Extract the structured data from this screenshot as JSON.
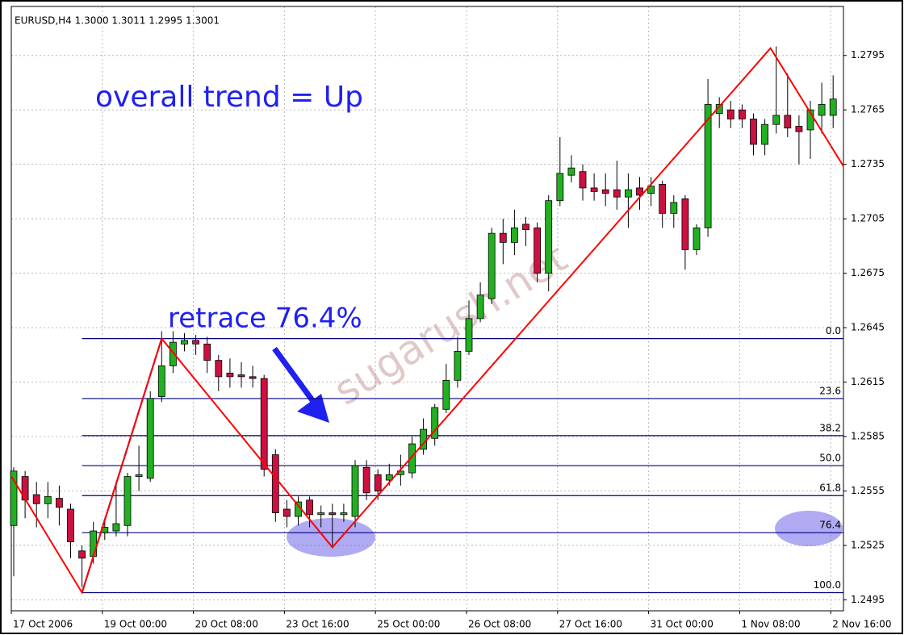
{
  "chart_data": {
    "type": "candlestick",
    "title": "EURUSD,H4  1.3000 1.3011 1.2995 1.3001",
    "annotations": [
      "overall trend = Up",
      "retrace 76.4%"
    ],
    "watermark": "sugarush.net",
    "categories": [
      "17 Oct 2006",
      null,
      null,
      null,
      null,
      null,
      null,
      null,
      "19 Oct 00:00",
      null,
      null,
      null,
      null,
      null,
      null,
      null,
      "20 Oct 08:00",
      null,
      null,
      null,
      null,
      null,
      null,
      null,
      "23 Oct 16:00",
      null,
      null,
      null,
      null,
      null,
      null,
      null,
      "25 Oct 00:00",
      null,
      null,
      null,
      null,
      null,
      null,
      null,
      "26 Oct 08:00",
      null,
      null,
      null,
      null,
      null,
      null,
      null,
      "27 Oct 16:00",
      null,
      null,
      null,
      null,
      null,
      null,
      null,
      "31 Oct 00:00",
      null,
      null,
      null,
      null,
      null,
      null,
      null,
      "1 Nov 08:00",
      null,
      null,
      null,
      null,
      null,
      null,
      null,
      "2 Nov 16:00"
    ],
    "open": [
      1.2536,
      1.2563,
      1.2553,
      1.2548,
      1.2551,
      1.2545,
      1.2522,
      1.2519,
      1.2532,
      1.2533,
      1.2536,
      1.2563,
      1.2562,
      1.2607,
      1.2624,
      1.2636,
      1.2638,
      1.2636,
      1.2627,
      1.262,
      1.2619,
      1.2618,
      1.2617,
      1.2575,
      1.2545,
      1.2541,
      1.255,
      1.2542,
      1.2543,
      1.2542,
      1.2541,
      1.2568,
      1.2564,
      1.2561,
      1.2564,
      1.2565,
      1.2578,
      1.2584,
      1.26,
      1.2616,
      1.2632,
      1.265,
      1.2661,
      1.2697,
      1.2692,
      1.2702,
      1.27,
      1.2675,
      1.2715,
      1.2729,
      1.2731,
      1.2722,
      1.2721,
      1.2721,
      1.2717,
      1.2722,
      1.2719,
      1.2724,
      1.2708,
      1.2716,
      1.2688,
      1.27,
      1.2763,
      1.2765,
      1.2765,
      1.276,
      1.2746,
      1.2757,
      1.2762,
      1.2756,
      1.2754,
      1.2762,
      1.2762
    ],
    "high": [
      1.2568,
      1.2566,
      1.256,
      1.256,
      1.2558,
      1.2548,
      1.2525,
      1.2538,
      1.254,
      1.256,
      1.2565,
      1.258,
      1.261,
      1.2643,
      1.2643,
      1.2642,
      1.2641,
      1.264,
      1.263,
      1.2628,
      1.2626,
      1.2624,
      1.2619,
      1.2578,
      1.255,
      1.2552,
      1.2552,
      1.2547,
      1.2548,
      1.2548,
      1.2572,
      1.2572,
      1.2567,
      1.257,
      1.2575,
      1.2585,
      1.2595,
      1.2603,
      1.2625,
      1.264,
      1.266,
      1.267,
      1.27,
      1.2705,
      1.271,
      1.2706,
      1.2703,
      1.2718,
      1.275,
      1.274,
      1.2735,
      1.273,
      1.273,
      1.2737,
      1.273,
      1.2728,
      1.2728,
      1.2726,
      1.2718,
      1.2718,
      1.2702,
      1.2782,
      1.2772,
      1.277,
      1.2768,
      1.2763,
      1.276,
      1.28,
      1.2785,
      1.2762,
      1.277,
      1.278,
      1.2784
    ],
    "low": [
      1.2508,
      1.254,
      1.2535,
      1.254,
      1.2536,
      1.2518,
      1.2502,
      1.2515,
      1.2528,
      1.253,
      1.253,
      1.2555,
      1.256,
      1.2604,
      1.262,
      1.2632,
      1.263,
      1.262,
      1.261,
      1.2612,
      1.2612,
      1.2612,
      1.2563,
      1.2538,
      1.2535,
      1.2536,
      1.2535,
      1.2535,
      1.2524,
      1.2538,
      1.2535,
      1.255,
      1.255,
      1.2558,
      1.2558,
      1.2562,
      1.2575,
      1.258,
      1.2598,
      1.2612,
      1.263,
      1.2648,
      1.2658,
      1.268,
      1.2685,
      1.269,
      1.267,
      1.2665,
      1.2712,
      1.2725,
      1.2715,
      1.2715,
      1.2712,
      1.271,
      1.27,
      1.271,
      1.2712,
      1.27,
      1.27,
      1.2677,
      1.2685,
      1.2695,
      1.2755,
      1.2755,
      1.2755,
      1.274,
      1.274,
      1.2752,
      1.275,
      1.2735,
      1.2738,
      1.2752,
      1.2755
    ],
    "close": [
      1.2566,
      1.255,
      1.2548,
      1.2552,
      1.2546,
      1.2527,
      1.2518,
      1.2533,
      1.2535,
      1.2537,
      1.2563,
      1.2564,
      1.2606,
      1.2624,
      1.2637,
      1.2638,
      1.2636,
      1.2627,
      1.2618,
      1.2618,
      1.2618,
      1.2617,
      1.2567,
      1.2543,
      1.2541,
      1.2549,
      1.2542,
      1.2543,
      1.2542,
      1.2543,
      1.2569,
      1.2554,
      1.2555,
      1.2564,
      1.2566,
      1.2581,
      1.2589,
      1.2601,
      1.2616,
      1.2632,
      1.265,
      1.2663,
      1.2697,
      1.2692,
      1.27,
      1.2699,
      1.2675,
      1.2715,
      1.273,
      1.2733,
      1.2722,
      1.272,
      1.2719,
      1.2717,
      1.2721,
      1.2718,
      1.2723,
      1.2708,
      1.2714,
      1.2688,
      1.27,
      1.2768,
      1.2768,
      1.276,
      1.276,
      1.2746,
      1.2757,
      1.2762,
      1.2755,
      1.2753,
      1.2765,
      1.2768,
      1.2771
    ],
    "up_color": "#22b022",
    "down_color": "#cc1040",
    "zigzag": {
      "color": "#ff0000",
      "x": [
        -0.2,
        6,
        13,
        28,
        66.5,
        72.9
      ],
      "values": [
        1.2563,
        1.2499,
        1.2639,
        1.2524,
        1.2799,
        1.2734
      ]
    },
    "fib": {
      "color": "#000080",
      "x": [
        6,
        13
      ],
      "values": [
        1.2499,
        1.2639
      ],
      "levels": [
        {
          "value": 0,
          "label": "0.0"
        },
        23.6,
        38.2,
        {
          "value": 50,
          "label": "50.0"
        },
        61.8,
        76.4,
        {
          "value": 100,
          "label": "100.0"
        }
      ]
    },
    "ylim": [
      1.2489,
      1.2822
    ],
    "yticks": [
      1.2495,
      1.2525,
      1.2555,
      1.2585,
      1.2615,
      1.2645,
      1.2675,
      1.2705,
      1.2735,
      1.2765,
      1.2795
    ],
    "grid": true
  }
}
